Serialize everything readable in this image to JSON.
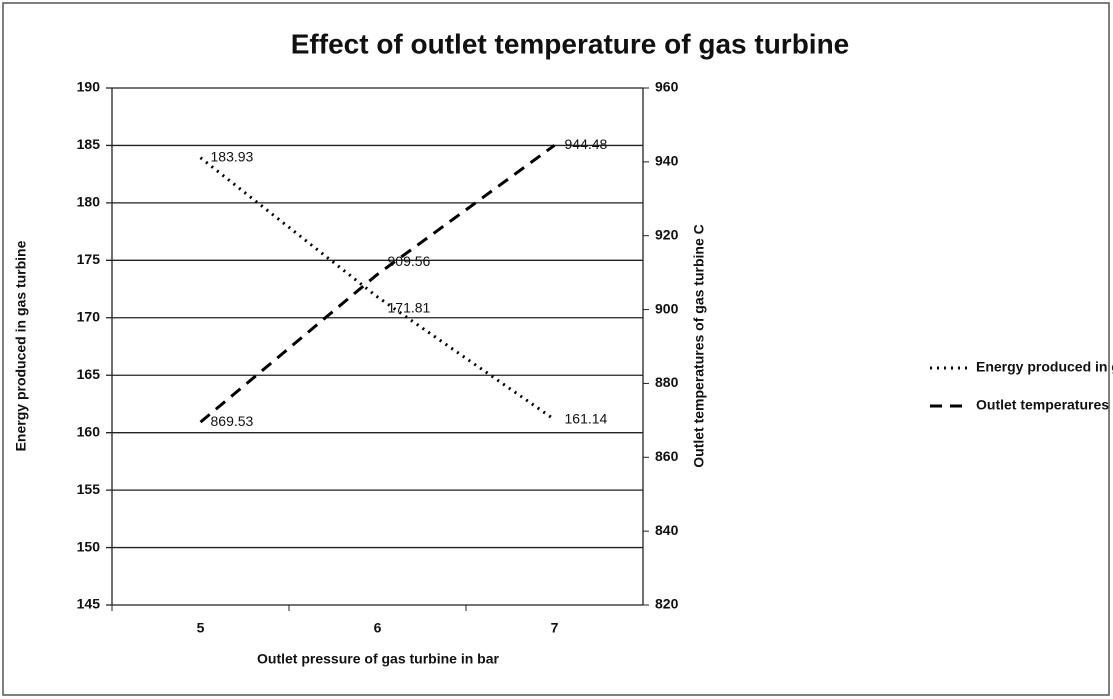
{
  "chart_data": {
    "type": "line",
    "title": "Effect of outlet temperature of gas turbine",
    "x_label": "Outlet pressure of gas turbine in bar",
    "y_label": "Energy produced in gas turbine",
    "y2_label": "Outlet temperatures of gas turbine C",
    "categories": [
      "5",
      "6",
      "7"
    ],
    "series": [
      {
        "name": "Energy produced in gas turbine",
        "color": "#000000",
        "dash": "dotted",
        "values": [
          183.93,
          171.81,
          161.14
        ]
      },
      {
        "name": "Outlet temperatures of gas turbine",
        "color": "#000000",
        "dash": "dashed",
        "axis": "y2",
        "values": [
          869.53,
          909.56,
          944.48
        ]
      }
    ],
    "ylim": [
      145,
      190
    ],
    "yticks": [
      145,
      150,
      155,
      160,
      165,
      170,
      175,
      180,
      185,
      190
    ],
    "y2lim": [
      820,
      960
    ],
    "y2ticks": [
      820,
      840,
      860,
      880,
      900,
      920,
      940,
      960
    ],
    "grid": true,
    "legend": "right"
  }
}
